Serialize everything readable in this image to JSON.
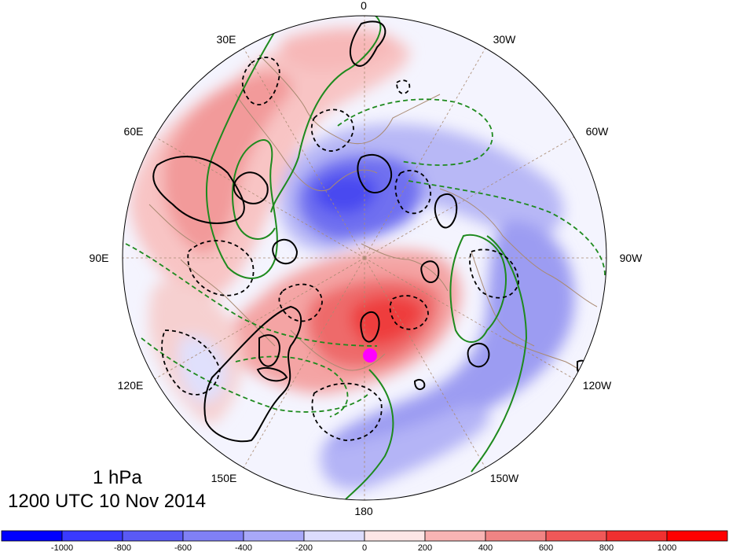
{
  "map": {
    "projection": "north polar stereographic",
    "longitude_labels": [
      "0",
      "30W",
      "60W",
      "90W",
      "120W",
      "150W",
      "180",
      "150E",
      "120E",
      "90E",
      "60E",
      "30E"
    ],
    "marker_color": "#ff00ff",
    "field_description": "shaded anomaly field with black solid/dashed and green solid/dashed contours"
  },
  "title": {
    "level": "1 hPa",
    "datetime": "1200 UTC 10 Nov 2014"
  },
  "colorbar": {
    "labels": [
      "-1000",
      "-800",
      "-600",
      "-400",
      "-200",
      "0",
      "200",
      "400",
      "600",
      "800",
      "1000"
    ],
    "colors": [
      "#0000ff",
      "#3a3aff",
      "#5a5af5",
      "#8080f5",
      "#a8a8f8",
      "#dcdcfc",
      "#fde6e6",
      "#f8b4b4",
      "#f08484",
      "#f05858",
      "#f03030",
      "#ff0000"
    ]
  }
}
